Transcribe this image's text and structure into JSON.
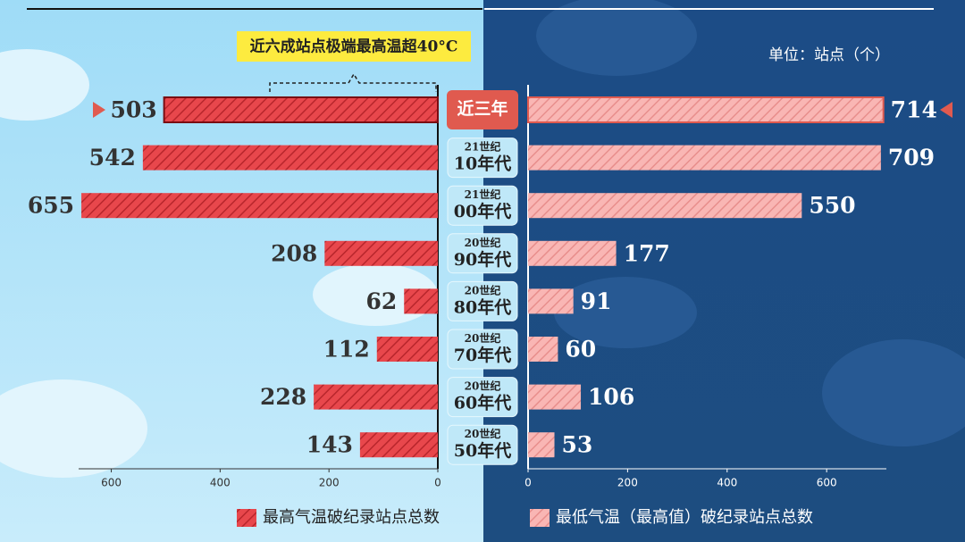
{
  "annotation": "近六成站点极端最高温超40°C",
  "unit": "单位：站点（个）",
  "chart_data": {
    "type": "butterfly",
    "categories": [
      "近三年",
      "21世纪\n10年代",
      "21世纪\n00年代",
      "20世纪\n90年代",
      "20世纪\n80年代",
      "20世纪\n70年代",
      "20世纪\n60年代",
      "20世纪\n50年代"
    ],
    "series": [
      {
        "name": "最高气温破纪录站点总数",
        "color": "#e8474c",
        "values": [
          503,
          542,
          655,
          208,
          62,
          112,
          228,
          143
        ],
        "xlim": [
          0,
          660
        ],
        "xticks": [
          0,
          200,
          400,
          600
        ]
      },
      {
        "name": "最低气温（最高值）破纪录站点总数",
        "color": "#f9b6b4",
        "values": [
          714,
          709,
          550,
          177,
          91,
          60,
          106,
          53
        ],
        "xlim": [
          0,
          720
        ],
        "xticks": [
          0,
          200,
          400,
          600
        ]
      }
    ]
  }
}
